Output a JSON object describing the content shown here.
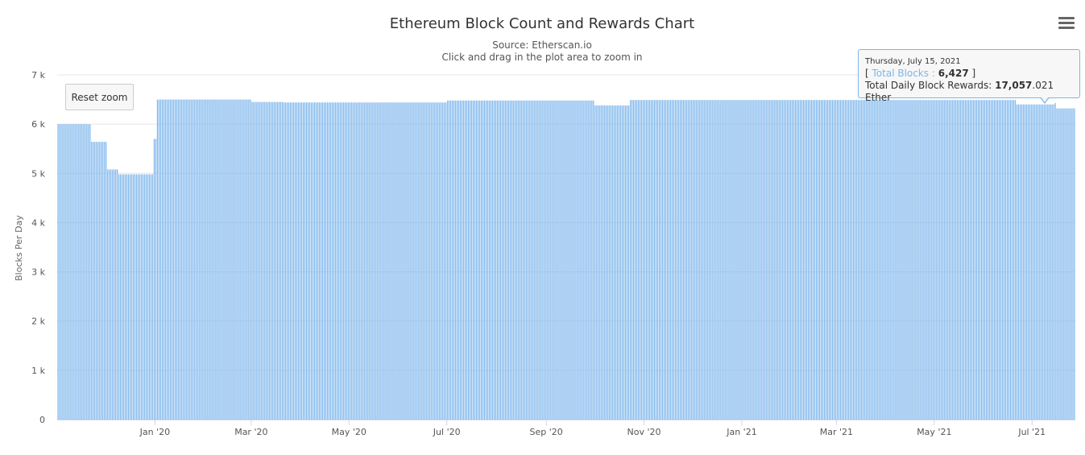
{
  "header": {
    "title": "Ethereum Block Count and Rewards Chart",
    "source": "Source: Etherscan.io",
    "hint": "Click and drag in the plot area to zoom in"
  },
  "controls": {
    "reset_zoom_label": "Reset zoom",
    "menu_icon": "hamburger-menu-icon"
  },
  "tooltip": {
    "date": "Thursday, July 15, 2021",
    "open_bracket": "[ ",
    "series_label": "Total Blocks : ",
    "series_value": "6,427",
    "close_bracket": " ]",
    "rewards_label": "Total Daily Block Rewards: ",
    "rewards_value_bold": "17,057",
    "rewards_value_rest": ".021 Ether"
  },
  "colors": {
    "bar": "#7cb5ec",
    "grid": "#e6e6e6",
    "text": "#333333"
  },
  "chart_data": {
    "type": "bar",
    "ylabel": "Blocks Per Day",
    "ylim": [
      0,
      7000
    ],
    "y_ticks": [
      {
        "value": 0,
        "label": "0"
      },
      {
        "value": 1000,
        "label": "1 k"
      },
      {
        "value": 2000,
        "label": "2 k"
      },
      {
        "value": 3000,
        "label": "3 k"
      },
      {
        "value": 4000,
        "label": "4 k"
      },
      {
        "value": 5000,
        "label": "5 k"
      },
      {
        "value": 6000,
        "label": "6 k"
      },
      {
        "value": 7000,
        "label": "7 k"
      }
    ],
    "x_range": [
      "2019-11-01",
      "2021-07-27"
    ],
    "x_ticks": [
      {
        "date": "2020-01-01",
        "label": "Jan '20"
      },
      {
        "date": "2020-03-01",
        "label": "Mar '20"
      },
      {
        "date": "2020-05-01",
        "label": "May '20"
      },
      {
        "date": "2020-07-01",
        "label": "Jul '20"
      },
      {
        "date": "2020-09-01",
        "label": "Sep '20"
      },
      {
        "date": "2020-11-01",
        "label": "Nov '20"
      },
      {
        "date": "2021-01-01",
        "label": "Jan '21"
      },
      {
        "date": "2021-03-01",
        "label": "Mar '21"
      },
      {
        "date": "2021-05-01",
        "label": "May '21"
      },
      {
        "date": "2021-07-01",
        "label": "Jul '21"
      }
    ],
    "series": [
      {
        "name": "Total Blocks",
        "segments": [
          {
            "from": "2019-11-01",
            "to": "2019-11-21",
            "value": 6000
          },
          {
            "from": "2019-11-22",
            "to": "2019-12-01",
            "value": 5640
          },
          {
            "from": "2019-12-02",
            "to": "2019-12-08",
            "value": 5080
          },
          {
            "from": "2019-12-09",
            "to": "2019-12-30",
            "value": 4980
          },
          {
            "from": "2019-12-31",
            "to": "2020-01-01",
            "value": 5700
          },
          {
            "from": "2020-01-02",
            "to": "2020-02-29",
            "value": 6500
          },
          {
            "from": "2020-03-01",
            "to": "2020-03-20",
            "value": 6450
          },
          {
            "from": "2020-03-21",
            "to": "2020-06-30",
            "value": 6440
          },
          {
            "from": "2020-07-01",
            "to": "2020-09-30",
            "value": 6480
          },
          {
            "from": "2020-10-01",
            "to": "2020-10-22",
            "value": 6380
          },
          {
            "from": "2020-10-23",
            "to": "2021-06-20",
            "value": 6490
          },
          {
            "from": "2021-06-21",
            "to": "2021-07-14",
            "value": 6400
          },
          {
            "from": "2021-07-15",
            "to": "2021-07-15",
            "value": 6427
          },
          {
            "from": "2021-07-16",
            "to": "2021-07-27",
            "value": 6320
          }
        ]
      }
    ]
  }
}
